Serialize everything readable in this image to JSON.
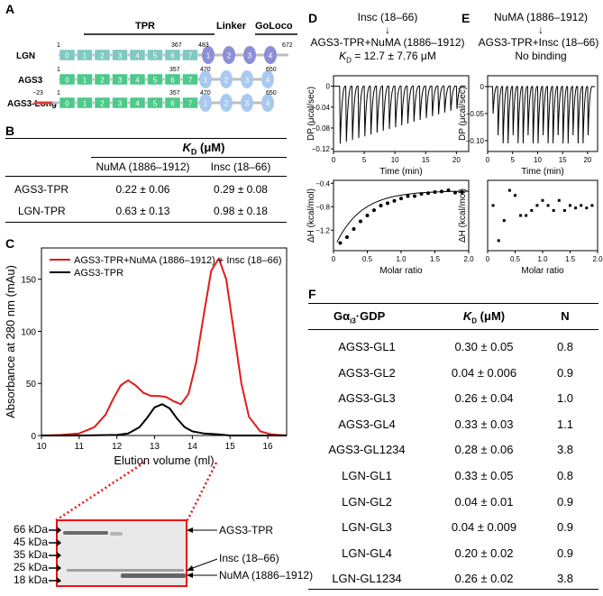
{
  "panel_a": {
    "letter": "A",
    "domain_labels": {
      "tpr": "TPR",
      "linker": "Linker",
      "goloco": "GoLoco"
    },
    "constructs": [
      {
        "name": "LGN",
        "start": "1",
        "tpr_end": "367",
        "gl_start": "483",
        "end": "672",
        "tpr_repeats": [
          "0",
          "1",
          "2",
          "3",
          "4",
          "5",
          "6",
          "7"
        ],
        "gl_motifs": [
          "1",
          "2",
          "3",
          "4"
        ]
      },
      {
        "name": "AGS3",
        "start": "1",
        "tpr_end": "357",
        "gl_start": "470",
        "end": "650",
        "tpr_repeats": [
          "0",
          "1",
          "2",
          "3",
          "4",
          "5",
          "6",
          "7"
        ],
        "gl_motifs": [
          "1",
          "2",
          "3",
          "4"
        ]
      },
      {
        "name": "AGS3-Long",
        "start": "−23",
        "start2": "1",
        "tpr_end": "357",
        "gl_start": "470",
        "end": "650",
        "tpr_repeats": [
          "0",
          "1",
          "2",
          "3",
          "4",
          "5",
          "6",
          "7"
        ],
        "gl_motifs": [
          "1",
          "2",
          "3",
          "4"
        ]
      }
    ],
    "colors": {
      "lgn_tpr": "#7fc9c0",
      "ags3_tpr": "#4dc98a",
      "lgn_gl": "#8d8fd6",
      "ags3_gl": "#a9c9ef",
      "long_ext": "#e23c3c"
    }
  },
  "panel_b": {
    "letter": "B",
    "header": "K",
    "header_sub": "D",
    "header_unit": " (μM)",
    "columns": [
      "NuMA (1886–1912)",
      "Insc (18–66)"
    ],
    "rows": [
      {
        "name": "AGS3-TPR",
        "numa": "0.22 ± 0.06",
        "insc": "0.29 ± 0.08"
      },
      {
        "name": "LGN-TPR",
        "numa": "0.63 ± 0.13",
        "insc": "0.98 ± 0.18"
      }
    ]
  },
  "panel_c": {
    "letter": "C",
    "chart_data": {
      "type": "line",
      "xlabel": "Elution volume (ml)",
      "ylabel": "Absorbance at 280 nm (mAu)",
      "xlim": [
        10,
        16.5
      ],
      "ylim": [
        0,
        180
      ],
      "xticks": [
        10,
        11,
        12,
        13,
        14,
        15,
        16
      ],
      "yticks": [
        0,
        50,
        100,
        150
      ],
      "series": [
        {
          "name": "AGS3-TPR+NuMA (1886–1912) + Insc (18–66)",
          "color": "#e11b1b",
          "x": [
            10,
            10.5,
            11,
            11.4,
            11.7,
            11.9,
            12.1,
            12.3,
            12.5,
            12.7,
            12.9,
            13.1,
            13.3,
            13.5,
            13.7,
            13.9,
            14.1,
            14.3,
            14.5,
            14.7,
            14.9,
            15.1,
            15.3,
            15.5,
            15.8,
            16.1,
            16.5
          ],
          "y": [
            0,
            0.5,
            2,
            8,
            20,
            35,
            48,
            53,
            48,
            41,
            38,
            38,
            37,
            33,
            30,
            40,
            70,
            115,
            158,
            170,
            150,
            100,
            50,
            18,
            4,
            1,
            0
          ]
        },
        {
          "name": "AGS3-TPR",
          "color": "#000000",
          "x": [
            10,
            11,
            12,
            12.3,
            12.6,
            12.8,
            13,
            13.2,
            13.4,
            13.6,
            13.8,
            14,
            14.3,
            14.7,
            15,
            16.5
          ],
          "y": [
            0,
            0,
            0.5,
            2,
            8,
            17,
            27,
            30,
            26,
            16,
            8,
            4,
            2,
            1,
            0,
            0
          ]
        }
      ]
    },
    "gel": {
      "markers": [
        "66 kDa",
        "45 kDa",
        "35 kDa",
        "25 kDa",
        "18 kDa"
      ],
      "band_labels": [
        "AGS3-TPR",
        "Insc (18–66)",
        "NuMA (1886–1912)"
      ]
    }
  },
  "panel_d": {
    "letter": "D",
    "titrant": "Insc (18–66)",
    "arrow": "↓",
    "cell": "AGS3-TPR+NuMA (1886–1912)",
    "kd_label": "K",
    "kd_sub": "D",
    "kd_value": " = 12.7 ± 7.76 μM",
    "top": {
      "ylabel": "DP (μcal/sec)",
      "xlabel": "Time (min)",
      "yticks": [
        "0",
        "−0.04",
        "−0.08",
        "−0.12"
      ],
      "xticks": [
        "0",
        "5",
        "10",
        "15",
        "20"
      ]
    },
    "bottom": {
      "ylabel": "ΔH (kcal/mol)",
      "xlabel": "Molar ratio",
      "yticks": [
        "−0.4",
        "−0.8",
        "−1.2"
      ],
      "xticks": [
        "0",
        "0.5",
        "1.0",
        "1.5",
        "2.0"
      ]
    },
    "chart_data": {
      "type": "scatter",
      "x": [
        0.1,
        0.2,
        0.3,
        0.4,
        0.5,
        0.6,
        0.7,
        0.8,
        0.9,
        1.0,
        1.1,
        1.2,
        1.3,
        1.4,
        1.5,
        1.6,
        1.7,
        1.8,
        1.9
      ],
      "y": [
        -1.42,
        -1.32,
        -1.18,
        -1.05,
        -0.95,
        -0.86,
        -0.78,
        -0.74,
        -0.7,
        -0.66,
        -0.62,
        -0.62,
        -0.58,
        -0.57,
        -0.55,
        -0.54,
        -0.52,
        -0.56,
        -0.55
      ],
      "xlim": [
        0,
        2.0
      ],
      "ylim": [
        -1.55,
        -0.35
      ]
    }
  },
  "panel_e": {
    "letter": "E",
    "titrant": "NuMA (1886–1912)",
    "arrow": "↓",
    "cell": "AGS3-TPR+Insc (18–66)",
    "note": "No binding",
    "top": {
      "ylabel": "DP (μcal/sec)",
      "xlabel": "Time (min)",
      "yticks": [
        "0",
        "−0.05",
        "−0.10"
      ],
      "xticks": [
        "0",
        "5",
        "10",
        "15",
        "20"
      ]
    },
    "bottom": {
      "ylabel": "ΔH (kcal/mol)",
      "xlabel": "Molar ratio",
      "xticks": [
        "0",
        "0.5",
        "1.0",
        "1.5",
        "2.0"
      ]
    },
    "chart_data": {
      "type": "scatter",
      "x": [
        0.1,
        0.2,
        0.3,
        0.4,
        0.5,
        0.6,
        0.7,
        0.8,
        0.9,
        1.0,
        1.1,
        1.2,
        1.3,
        1.4,
        1.5,
        1.6,
        1.7,
        1.8,
        1.9
      ],
      "y": [
        -0.3,
        -1.0,
        -0.6,
        0.0,
        -0.1,
        -0.5,
        -0.5,
        -0.4,
        -0.3,
        -0.2,
        -0.3,
        -0.4,
        -0.2,
        -0.4,
        -0.3,
        -0.35,
        -0.3,
        -0.35,
        -0.3
      ],
      "xlim": [
        0,
        2.0
      ],
      "ylim": [
        -1.2,
        0.2
      ]
    }
  },
  "panel_f": {
    "letter": "F",
    "headers": {
      "protein": "Gα",
      "protein_sub": "i3",
      "protein_suffix": "·GDP",
      "kd": "K",
      "kd_sub": "D",
      "kd_unit": " (μM)",
      "n": "N"
    },
    "rows": [
      {
        "name": "AGS3-GL1",
        "kd": "0.30 ± 0.05",
        "n": "0.8"
      },
      {
        "name": "AGS3-GL2",
        "kd": "0.04 ± 0.006",
        "n": "0.9"
      },
      {
        "name": "AGS3-GL3",
        "kd": "0.26 ± 0.04",
        "n": "1.0"
      },
      {
        "name": "AGS3-GL4",
        "kd": "0.33 ± 0.03",
        "n": "1.1"
      },
      {
        "name": "AGS3-GL1234",
        "kd": "0.28 ± 0.06",
        "n": "3.8"
      },
      {
        "name": "LGN-GL1",
        "kd": "0.33 ± 0.05",
        "n": "0.8"
      },
      {
        "name": "LGN-GL2",
        "kd": "0.04 ± 0.01",
        "n": "0.9"
      },
      {
        "name": "LGN-GL3",
        "kd": "0.04 ± 0.009",
        "n": "0.9"
      },
      {
        "name": "LGN-GL4",
        "kd": "0.20 ± 0.02",
        "n": "0.9"
      },
      {
        "name": "LGN-GL1234",
        "kd": "0.26 ± 0.02",
        "n": "3.8"
      }
    ]
  }
}
